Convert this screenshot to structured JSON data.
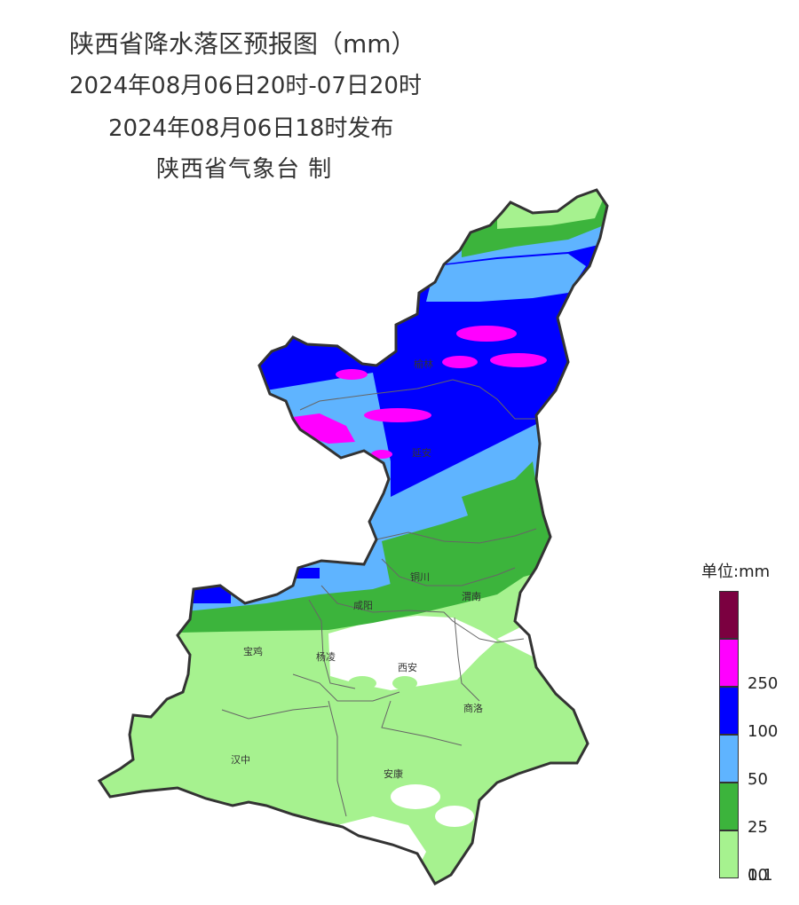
{
  "title": {
    "line1": "陕西省降水落区预报图（mm）",
    "line2": "2024年08月06日20时-07日20时",
    "line3": "2024年08月06日18时发布",
    "line4": "陕西省气象台 制"
  },
  "cities": [
    {
      "name": "榆林"
    },
    {
      "name": "延安"
    },
    {
      "name": "铜川"
    },
    {
      "name": "渭南"
    },
    {
      "name": "咸阳"
    },
    {
      "name": "宝鸡"
    },
    {
      "name": "杨凌"
    },
    {
      "name": "西安"
    },
    {
      "name": "商洛"
    },
    {
      "name": "汉中"
    },
    {
      "name": "安康"
    }
  ],
  "legend": {
    "title": "单位:mm",
    "items": [
      {
        "color": "#7b0040",
        "label": ""
      },
      {
        "color": "#ff00ff",
        "label": "250"
      },
      {
        "color": "#0000ff",
        "label": "100"
      },
      {
        "color": "#5fb4ff",
        "label": "50"
      },
      {
        "color": "#3cb43c",
        "label": "25"
      },
      {
        "color": "#a6f28f",
        "label": "10"
      }
    ],
    "bottom_label": "0.1"
  }
}
